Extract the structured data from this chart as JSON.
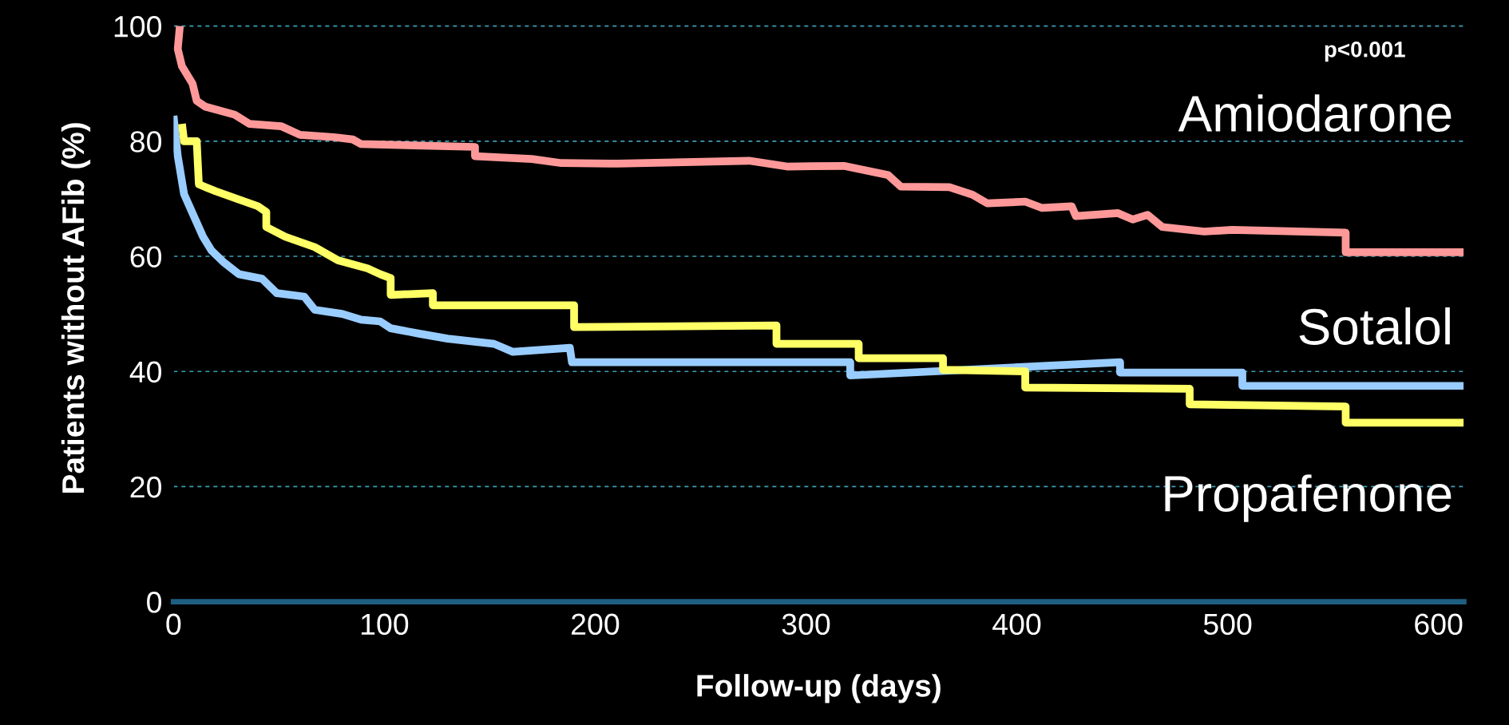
{
  "chart_data": {
    "type": "line",
    "xlabel": "Follow-up (days)",
    "ylabel": "Patients without AFib (%)",
    "xlim": [
      0,
      612
    ],
    "xticks": [
      0,
      100,
      200,
      300,
      400,
      500,
      600
    ],
    "ylim": [
      0,
      102
    ],
    "yticks": [
      0,
      20,
      40,
      60,
      80,
      100
    ],
    "grid": "y",
    "legend": false,
    "line_style": "solid",
    "marker": "none",
    "annotations": [
      "p<0.001"
    ],
    "series": [
      {
        "name": "Amiodarone",
        "color": "#ff9999",
        "x": [
          3,
          2,
          4,
          9,
          11,
          15,
          29,
          36,
          51,
          60,
          76,
          85,
          89,
          143,
          143,
          170,
          184,
          211,
          273,
          291,
          318,
          339,
          345,
          368,
          379,
          386,
          404,
          412,
          426,
          428,
          448,
          455,
          462,
          469,
          489,
          502,
          556,
          556,
          612
        ],
        "values": [
          100,
          96,
          93,
          90,
          87,
          86,
          84.6,
          83,
          82.6,
          81.1,
          80.7,
          80.3,
          79.5,
          79,
          77.4,
          76.9,
          76.2,
          76.1,
          76.6,
          75.6,
          75.7,
          74.1,
          72.1,
          72,
          70.7,
          69.2,
          69.5,
          68.4,
          68.7,
          67,
          67.5,
          66.4,
          67.2,
          65.1,
          64.3,
          64.6,
          64.1,
          60.7,
          60.7
        ]
      },
      {
        "name": "Sotalol",
        "color": "#99ccff",
        "x": [
          0,
          2,
          5,
          9,
          14,
          18,
          24,
          31,
          42,
          49,
          62,
          67,
          80,
          89,
          98,
          103,
          116,
          130,
          152,
          161,
          188,
          189,
          321,
          321,
          449,
          449,
          507,
          507,
          612
        ],
        "values": [
          84.4,
          77.4,
          70.8,
          67.5,
          63.4,
          61,
          58.9,
          56.9,
          56.1,
          53.6,
          53,
          50.7,
          50,
          49,
          48.7,
          47.5,
          46.6,
          45.7,
          44.8,
          43.4,
          44.1,
          41.6,
          41.6,
          39.3,
          41.6,
          39.8,
          39.8,
          37.5,
          37.5
        ]
      },
      {
        "name": "Propafenone",
        "color": "#ffff66",
        "x": [
          4,
          5,
          11,
          12,
          20,
          40,
          44,
          44,
          53,
          67,
          78,
          92,
          98,
          103,
          103,
          123,
          123,
          190,
          190,
          286,
          286,
          325,
          325,
          365,
          365,
          404,
          404,
          482,
          482,
          556,
          556,
          612
        ],
        "values": [
          83,
          80,
          80,
          72.5,
          71.3,
          68.7,
          67.7,
          65.1,
          63.4,
          61.6,
          59.3,
          57.9,
          56.9,
          56.2,
          53.3,
          53.6,
          51.5,
          51.5,
          47.7,
          48,
          44.8,
          44.8,
          42.3,
          42.3,
          40.3,
          40,
          37.2,
          37,
          34.3,
          33.9,
          31.1,
          31.1
        ]
      }
    ]
  }
}
